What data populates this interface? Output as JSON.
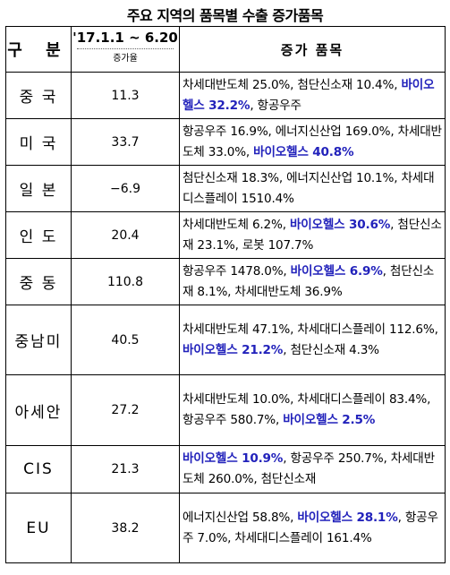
{
  "title": "주요 지역의 품목별 수출 증가품목",
  "header": {
    "region": "구 분",
    "period": "'17.1.1 ~ 6.20",
    "rate_sub": "증가율",
    "items": "증가 품목"
  },
  "rows": [
    {
      "region": "중 국",
      "rate": "11.3",
      "items": [
        {
          "t": "차세대반도체 25.0%, 첨단신소재 10.4%, "
        },
        {
          "t": "바이오헬스 32.2%",
          "hl": true
        },
        {
          "t": ", 항공우주"
        }
      ]
    },
    {
      "region": "미 국",
      "rate": "33.7",
      "items": [
        {
          "t": "항공우주 16.9%, 에너지신산업 169.0%, 차세대반도체 33.0%, "
        },
        {
          "t": "바이오헬스 40.8%",
          "hl": true
        }
      ]
    },
    {
      "region": "일 본",
      "rate": "−6.9",
      "items": [
        {
          "t": "첨단신소재 18.3%, 에너지신산업 10.1%, 차세대디스플레이 1510.4%"
        }
      ]
    },
    {
      "region": "인 도",
      "rate": "20.4",
      "items": [
        {
          "t": "차세대반도체 6.2%, "
        },
        {
          "t": "바이오헬스 30.6%",
          "hl": true
        },
        {
          "t": ", 첨단신소재 23.1%, 로봇 107.7%"
        }
      ]
    },
    {
      "region": "중 동",
      "rate": "110.8",
      "items": [
        {
          "t": "항공우주 1478.0%, "
        },
        {
          "t": "바이오헬스 6.9%",
          "hl": true
        },
        {
          "t": ", 첨단신소재 8.1%, 차세대반도체 36.9%"
        }
      ]
    },
    {
      "region": "중남미",
      "rate": "40.5",
      "items": [
        {
          "t": "차세대반도체 47.1%, 차세대디스플레이 112.6%, "
        },
        {
          "t": "바이오헬스 21.2%",
          "hl": true
        },
        {
          "t": ", 첨단신소재 4.3%"
        }
      ]
    },
    {
      "region": "아세안",
      "rate": "27.2",
      "items": [
        {
          "t": "차세대반도체 10.0%, 차세대디스플레이 83.4%, 항공우주 580.7%, "
        },
        {
          "t": "바이오헬스 2.5%",
          "hl": true
        }
      ]
    },
    {
      "region": "CIS",
      "rate": "21.3",
      "items": [
        {
          "t": "바이오헬스 10.9%",
          "hl": true
        },
        {
          "t": ", 항공우주 250.7%, 차세대반도체 260.0%, 첨단신소재"
        }
      ]
    },
    {
      "region": "EU",
      "rate": "38.2",
      "items": [
        {
          "t": "에너지신산업 58.8%, "
        },
        {
          "t": "바이오헬스 28.1%",
          "hl": true
        },
        {
          "t": ", 항공우주 7.0%, 차세대디스플레이 161.4%"
        }
      ]
    }
  ]
}
